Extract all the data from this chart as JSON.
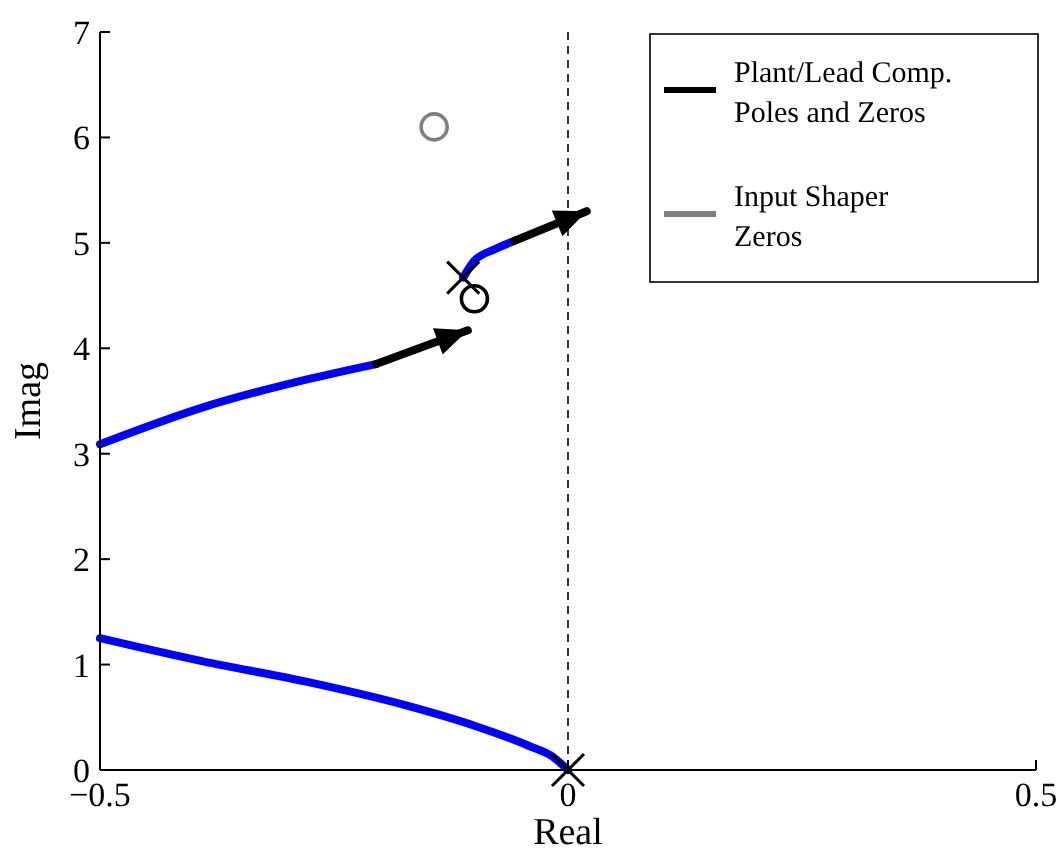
{
  "chart_data": {
    "type": "line",
    "xlabel": "Real",
    "ylabel": "Imag",
    "xlim": [
      -0.5,
      0.5
    ],
    "xticks": [
      {
        "value": -0.5,
        "label": "−0.5"
      },
      0,
      0.5
    ],
    "ylim": [
      0,
      7
    ],
    "yticks": [
      0,
      1,
      2,
      3,
      4,
      5,
      6,
      7
    ],
    "grid": false,
    "legend": "top right",
    "ref_lines": [
      {
        "axis": "x",
        "value": 0,
        "line_style": "dashed",
        "color": "#000000"
      }
    ],
    "series": [
      {
        "color": "#0000ff",
        "x": [
          -0.5,
          -0.39,
          -0.281,
          -0.205
        ],
        "values": [
          3.09,
          3.44,
          3.7,
          3.85
        ]
      },
      {
        "color": "#000000",
        "x": [
          -0.205,
          -0.107
        ],
        "values": [
          3.85,
          4.17
        ]
      },
      {
        "color": "#0000ff",
        "x": [
          -0.112,
          -0.1,
          -0.078,
          -0.057
        ],
        "values": [
          4.67,
          4.83,
          4.94,
          5.02
        ]
      },
      {
        "color": "#000000",
        "x": [
          -0.057,
          0.02
        ],
        "values": [
          5.02,
          5.3
        ]
      },
      {
        "color": "#0000ff",
        "x": [
          -0.5,
          -0.39,
          -0.281,
          -0.172,
          -0.1,
          -0.042,
          -0.017,
          0
        ],
        "values": [
          1.25,
          1.03,
          0.84,
          0.61,
          0.42,
          0.23,
          0.13,
          0
        ]
      },
      {
        "type": "scatter",
        "name": "Plant/Lead Comp. Poles and Zeros",
        "marker": "cross",
        "color": "#000000",
        "x": [
          -0.112,
          0
        ],
        "values": [
          4.67,
          0
        ]
      },
      {
        "type": "scatter",
        "marker": "circle",
        "color": "#000000",
        "x": [
          -0.1
        ],
        "values": [
          4.47
        ]
      },
      {
        "type": "scatter",
        "name": "Input Shaper Zeros",
        "marker": "circle",
        "color": "#808080",
        "x": [
          -0.143
        ],
        "values": [
          6.1
        ]
      }
    ]
  }
}
